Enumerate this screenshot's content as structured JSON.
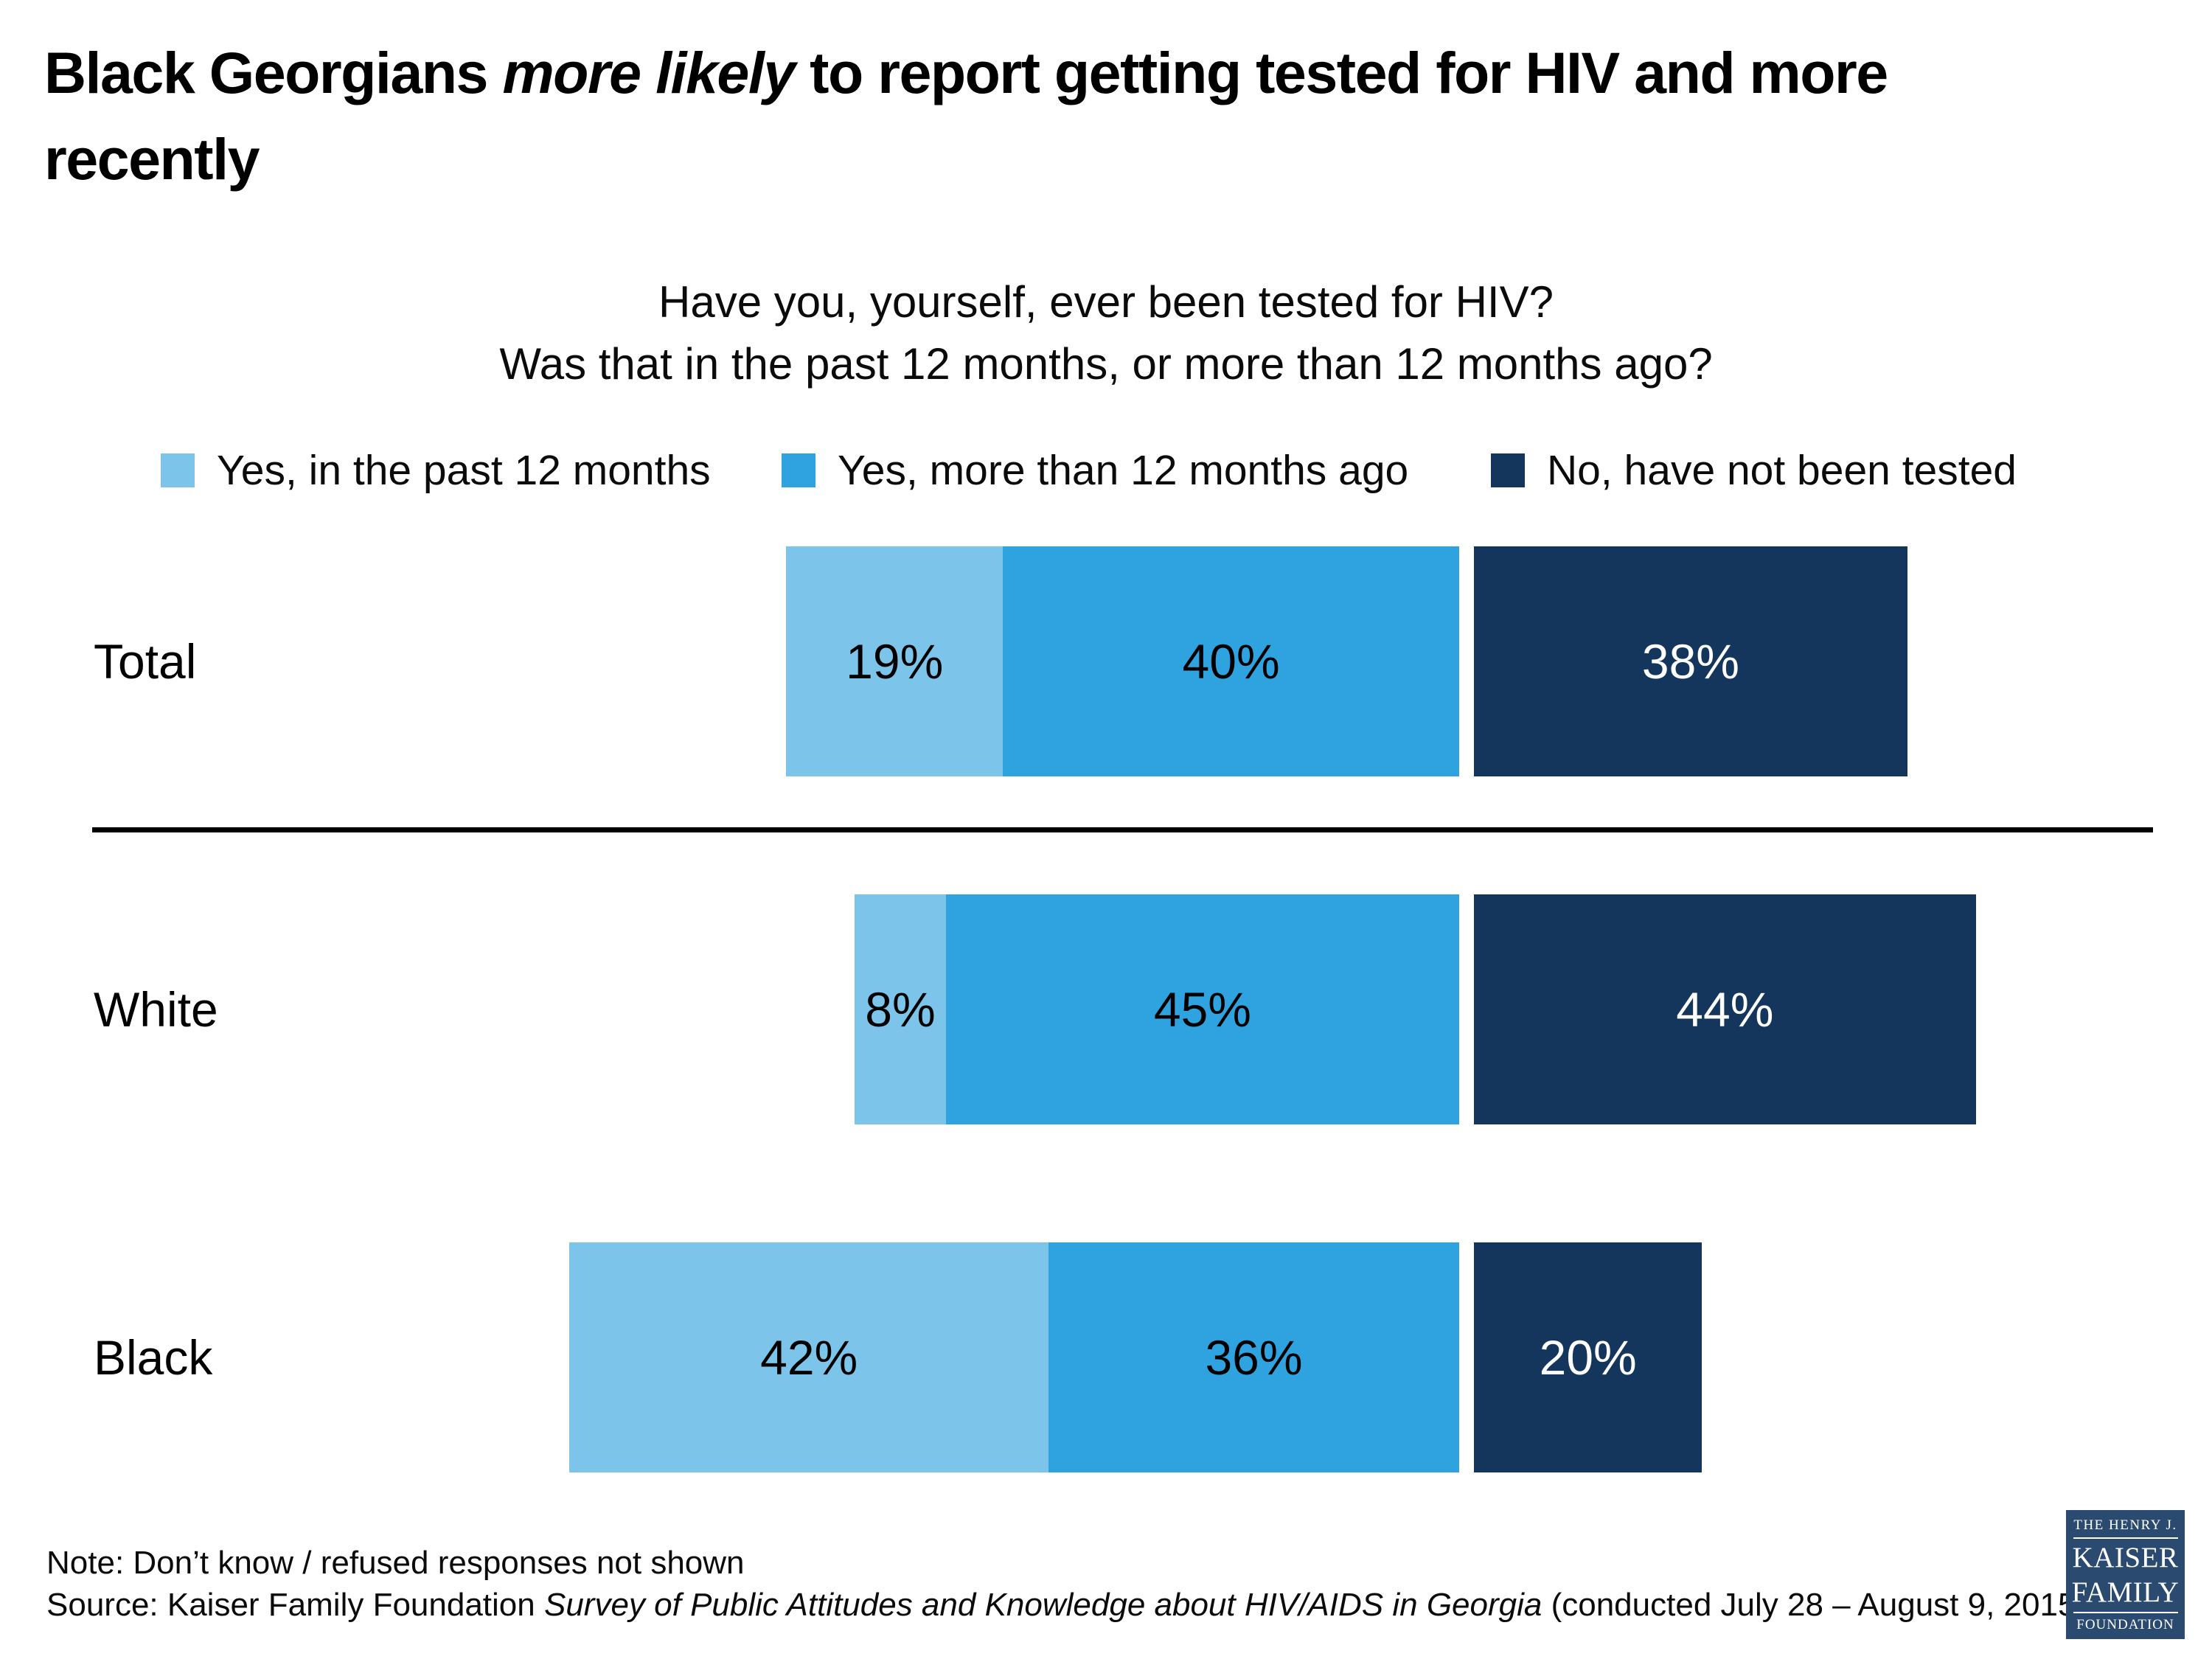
{
  "page": {
    "title": {
      "text_prefix": "Black Georgians ",
      "text_italic": "more likely",
      "text_suffix": " to report getting tested for HIV and more",
      "text_line2": "recently"
    },
    "subtitle_line1": "Have you, yourself, ever been tested for HIV?",
    "subtitle_line2": "Was that in the past 12 months, or more than 12 months ago?"
  },
  "chart_data": {
    "type": "bar",
    "orientation": "horizontal",
    "stacked": true,
    "title": "Have you, yourself, ever been tested for HIV? Was that in the past 12 months, or more than 12 months ago?",
    "categories": [
      "Total",
      "White",
      "Black"
    ],
    "series": [
      {
        "name": "Yes, in the past 12 months",
        "color": "#7CC4EA",
        "label_color": "#000000",
        "values": [
          19,
          8,
          42
        ]
      },
      {
        "name": "Yes, more than 12 months ago",
        "color": "#2EA3E0",
        "label_color": "#000000",
        "values": [
          40,
          45,
          36
        ]
      },
      {
        "name": "No, have not been tested",
        "color": "#15365C",
        "label_color": "#FFFFFF",
        "values": [
          38,
          44,
          20
        ]
      }
    ],
    "value_suffix": "%",
    "xlim": [
      0,
      100
    ],
    "legend_position": "top",
    "grid": false,
    "layout_note": "first two segments are right-aligned to a shared anchor; third segment starts after a small white gap; a black divider line separates the Total row from the race rows"
  },
  "footer": {
    "note": "Note: Don’t know / refused responses not shown",
    "source_prefix": "Source: Kaiser Family Foundation ",
    "source_italic": "Survey of Public Attitudes and Knowledge about HIV/AIDS in Georgia",
    "source_suffix": " (conducted July 28 – August 9, 2015)"
  },
  "logo": {
    "line1": "THE HENRY J.",
    "line2": "KAISER",
    "line3": "FAMILY",
    "line4": "FOUNDATION",
    "bg_color": "#2A4A70",
    "text_color": "#FFFFFF"
  },
  "colors": {
    "background": "#FFFFFF",
    "title_text": "#000000",
    "divider": "#000000"
  }
}
